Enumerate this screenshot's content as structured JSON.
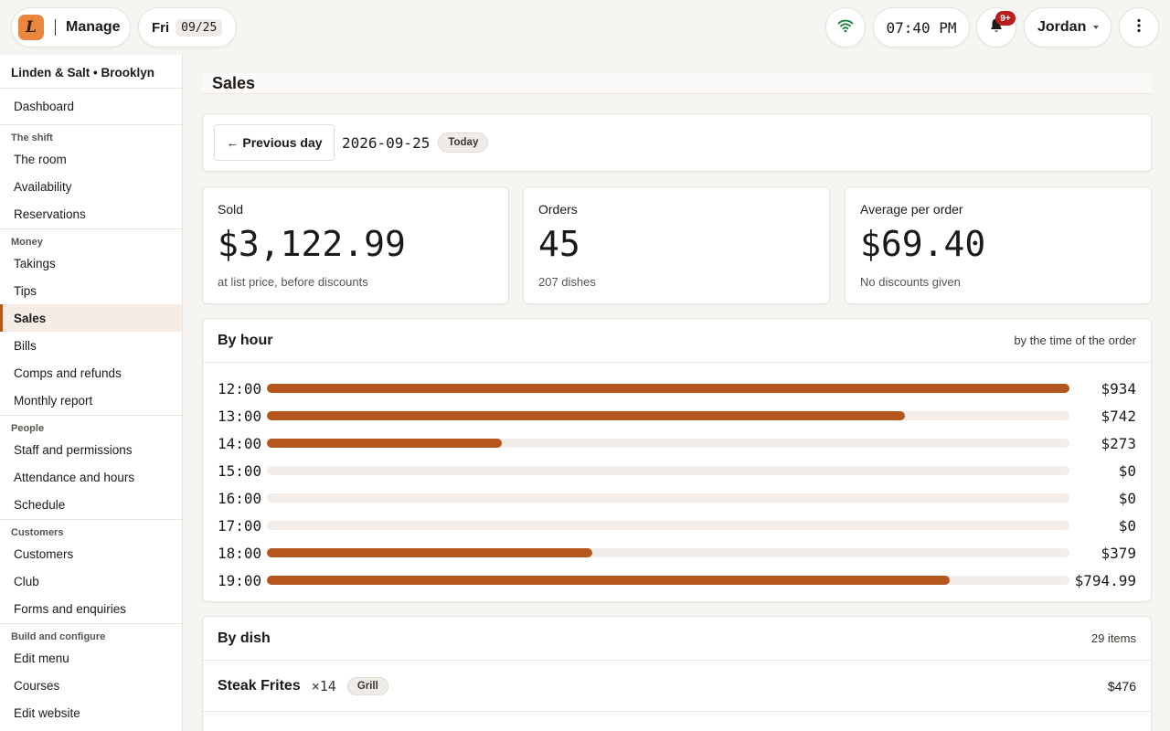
{
  "header": {
    "logo_glyph": "L",
    "manage_label": "Manage",
    "day": "Fri",
    "date_short": "09/25",
    "clock": "07:40 PM",
    "notifications_badge": "9+",
    "user_name": "Jordan"
  },
  "sidebar": {
    "venue": "Linden & Salt • Brooklyn",
    "top_item": "Dashboard",
    "sections": [
      {
        "heading": "The shift",
        "items": [
          "The room",
          "Availability",
          "Reservations"
        ]
      },
      {
        "heading": "Money",
        "items": [
          "Takings",
          "Tips",
          "Sales",
          "Bills",
          "Comps and refunds",
          "Monthly report"
        ]
      },
      {
        "heading": "People",
        "items": [
          "Staff and permissions",
          "Attendance and hours",
          "Schedule"
        ]
      },
      {
        "heading": "Customers",
        "items": [
          "Customers",
          "Club",
          "Forms and enquiries"
        ]
      },
      {
        "heading": "Build and configure",
        "items": [
          "Edit menu",
          "Courses",
          "Edit website"
        ]
      }
    ],
    "active_item": "Sales"
  },
  "page": {
    "title": "Sales",
    "prev_day_label": "← Previous day",
    "current_date": "2026-09-25",
    "today_chip": "Today"
  },
  "stats": {
    "sold_label": "Sold",
    "sold_value": "$3,122.99",
    "sold_sub": "at list price, before discounts",
    "orders_label": "Orders",
    "orders_value": "45",
    "orders_sub": "207 dishes",
    "avg_label": "Average per order",
    "avg_value": "$69.40",
    "avg_sub": "No discounts given"
  },
  "by_hour": {
    "title": "By hour",
    "note": "by the time of the order",
    "max_value": 934,
    "rows": [
      {
        "hour": "12:00",
        "value": 934,
        "label": "$934"
      },
      {
        "hour": "13:00",
        "value": 742,
        "label": "$742"
      },
      {
        "hour": "14:00",
        "value": 273,
        "label": "$273"
      },
      {
        "hour": "15:00",
        "value": 0,
        "label": "$0"
      },
      {
        "hour": "16:00",
        "value": 0,
        "label": "$0"
      },
      {
        "hour": "17:00",
        "value": 0,
        "label": "$0"
      },
      {
        "hour": "18:00",
        "value": 379,
        "label": "$379"
      },
      {
        "hour": "19:00",
        "value": 794.99,
        "label": "$794.99"
      }
    ]
  },
  "by_dish": {
    "title": "By dish",
    "count": "29 items",
    "rows": [
      {
        "name": "Steak Frites",
        "qty": "×14",
        "station": "Grill",
        "price": "$476"
      }
    ]
  },
  "colors": {
    "accent": "#b4561d",
    "logo_bg": "#e8873d",
    "badge": "#b91c1c",
    "wifi": "#15803d"
  }
}
